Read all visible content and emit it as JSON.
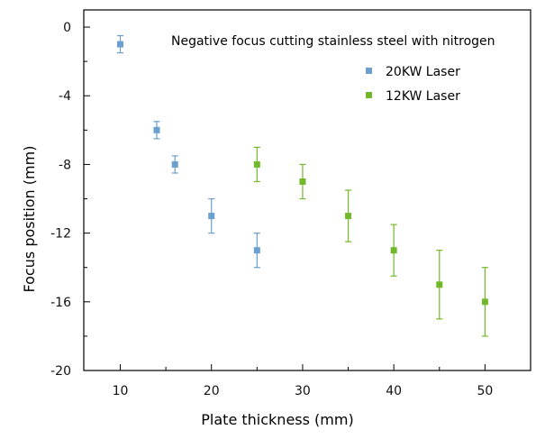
{
  "chart_data": {
    "type": "scatter",
    "title": "Negative focus cutting stainless steel with nitrogen",
    "xlabel": "Plate thickness (mm)",
    "ylabel": "Focus position (mm)",
    "xlim": [
      6,
      55
    ],
    "ylim": [
      -20,
      1
    ],
    "xticks": [
      10,
      20,
      30,
      40,
      50
    ],
    "yticks": [
      0,
      -4,
      -8,
      -12,
      -16,
      -20
    ],
    "x_tick_labels": [
      "10",
      "20",
      "30",
      "40",
      "50"
    ],
    "y_tick_labels": [
      "0",
      "-4",
      "-8",
      "-12",
      "-16",
      "-20"
    ],
    "legend_position": "top-right",
    "series": [
      {
        "name": "20KW Laser",
        "color": "#6a9fcf",
        "points": [
          {
            "x": 10,
            "y": -1,
            "err": 0.5
          },
          {
            "x": 14,
            "y": -6,
            "err": 0.5
          },
          {
            "x": 16,
            "y": -8,
            "err": 0.5
          },
          {
            "x": 20,
            "y": -11,
            "err": 1
          },
          {
            "x": 25,
            "y": -13,
            "err": 1
          }
        ]
      },
      {
        "name": "12KW Laser",
        "color": "#72b82a",
        "points": [
          {
            "x": 25,
            "y": -8,
            "err": 1
          },
          {
            "x": 30,
            "y": -9,
            "err": 1
          },
          {
            "x": 35,
            "y": -11,
            "err": 1.5
          },
          {
            "x": 40,
            "y": -13,
            "err": 1.5
          },
          {
            "x": 45,
            "y": -15,
            "err": 2
          },
          {
            "x": 50,
            "y": -16,
            "err": 2
          }
        ]
      }
    ]
  }
}
